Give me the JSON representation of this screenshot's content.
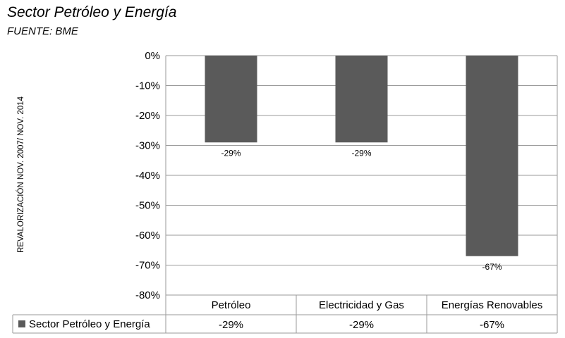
{
  "chart_data": {
    "type": "bar",
    "title": "Sector Petróleo y Energía",
    "subtitle": "FUENTE: BME",
    "xlabel": "",
    "ylabel": "REVALORIZACIÓN NOV. 2007/ NOV. 2014",
    "categories": [
      "Petróleo",
      "Electricidad y Gas",
      "Energías Renovables"
    ],
    "series": [
      {
        "name": "Sector Petróleo y Energía",
        "values": [
          -29,
          -29,
          -67
        ],
        "labels": [
          "-29%",
          "-29%",
          "-67%"
        ]
      }
    ],
    "ylim": [
      -80,
      0
    ],
    "yticks": [
      0,
      -10,
      -20,
      -30,
      -40,
      -50,
      -60,
      -70,
      -80
    ],
    "ytick_labels": [
      "0%",
      "-10%",
      "-20%",
      "-30%",
      "-40%",
      "-50%",
      "-60%",
      "-70%",
      "-80%"
    ],
    "grid": true,
    "legend": "data-table",
    "colors": {
      "bar": "#5a5a5a",
      "grid": "#9a9a9a"
    }
  }
}
